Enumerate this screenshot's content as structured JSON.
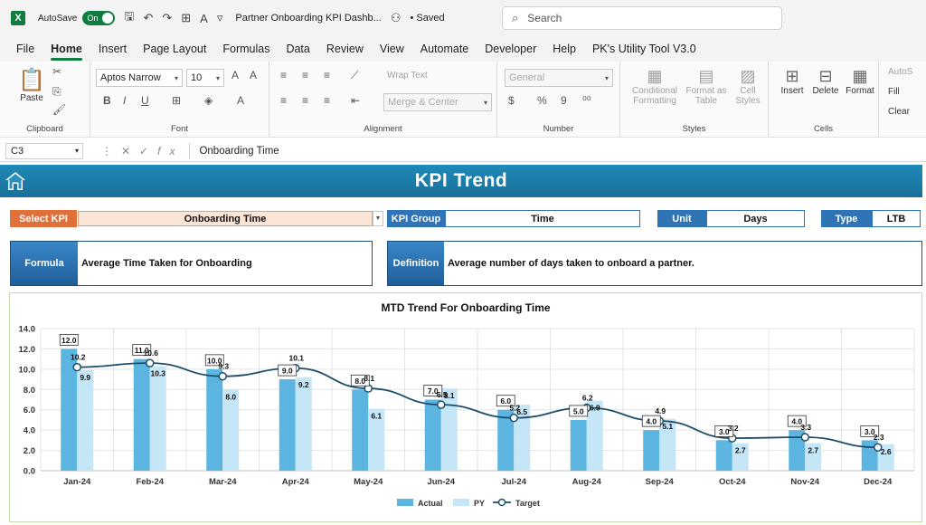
{
  "titlebar": {
    "app_icon": "X",
    "autosave_label": "AutoSave",
    "autosave_state": "On",
    "doc_title": "Partner Onboarding KPI Dashb...",
    "saved_label": "• Saved",
    "search_placeholder": "Search"
  },
  "menu": [
    "File",
    "Home",
    "Insert",
    "Page Layout",
    "Formulas",
    "Data",
    "Review",
    "View",
    "Automate",
    "Developer",
    "Help",
    "PK's Utility Tool V3.0"
  ],
  "ribbon": {
    "clipboard": {
      "label": "Clipboard",
      "paste": "Paste"
    },
    "font": {
      "label": "Font",
      "family": "Aptos Narrow",
      "size": "10"
    },
    "alignment": {
      "label": "Alignment",
      "wrap": "Wrap Text",
      "merge": "Merge & Center"
    },
    "number": {
      "label": "Number",
      "format": "General"
    },
    "styles": {
      "label": "Styles",
      "conditional": "Conditional",
      "conditional2": "Formatting",
      "format_as": "Format as",
      "format_as2": "Table",
      "cell": "Cell",
      "cell2": "Styles"
    },
    "cells": {
      "label": "Cells",
      "insert": "Insert",
      "delete": "Delete",
      "format": "Format"
    },
    "editing": {
      "autosum": "AutoS",
      "fill": "Fill",
      "clear": "Clear"
    }
  },
  "formula_bar": {
    "name_box": "C3",
    "content": "Onboarding Time"
  },
  "dashboard": {
    "banner_title": "KPI Trend",
    "select_kpi_label": "Select KPI",
    "select_kpi_value": "Onboarding Time",
    "kpi_group_label": "KPI Group",
    "kpi_group_value": "Time",
    "unit_label": "Unit",
    "unit_value": "Days",
    "type_label": "Type",
    "type_value": "LTB",
    "formula_label": "Formula",
    "formula_value": "Average Time Taken for Onboarding",
    "definition_label": "Definition",
    "definition_value": "Average number of days taken to onboard a partner."
  },
  "colors": {
    "actual_bar": "#5bb5e0",
    "py_bar": "#c5e6f6",
    "target_line": "#1f4e6b",
    "banner": "#1a7aa8",
    "orange_label": "#e0703a",
    "blue_label": "#2f75b5"
  },
  "chart_data": {
    "type": "bar",
    "title": "MTD Trend For Onboarding Time",
    "categories": [
      "Jan-24",
      "Feb-24",
      "Mar-24",
      "Apr-24",
      "May-24",
      "Jun-24",
      "Jul-24",
      "Aug-24",
      "Sep-24",
      "Oct-24",
      "Nov-24",
      "Dec-24"
    ],
    "series": [
      {
        "name": "Actual",
        "kind": "bar",
        "values": [
          12.0,
          11.0,
          10.0,
          9.0,
          8.0,
          7.0,
          6.0,
          5.0,
          4.0,
          3.0,
          4.0,
          3.0
        ]
      },
      {
        "name": "PY",
        "kind": "bar",
        "values": [
          9.9,
          10.3,
          8.0,
          9.2,
          6.1,
          8.1,
          6.5,
          6.9,
          5.1,
          2.7,
          2.7,
          2.6
        ]
      },
      {
        "name": "Target",
        "kind": "line",
        "values": [
          10.2,
          10.6,
          9.3,
          10.1,
          8.1,
          6.5,
          5.2,
          6.2,
          4.9,
          3.2,
          3.3,
          2.3
        ]
      }
    ],
    "yticks": [
      "0.0",
      "2.0",
      "4.0",
      "6.0",
      "8.0",
      "10.0",
      "12.0",
      "14.0"
    ],
    "ylim": [
      0,
      14
    ],
    "grid": true,
    "legend_position": "bottom"
  }
}
